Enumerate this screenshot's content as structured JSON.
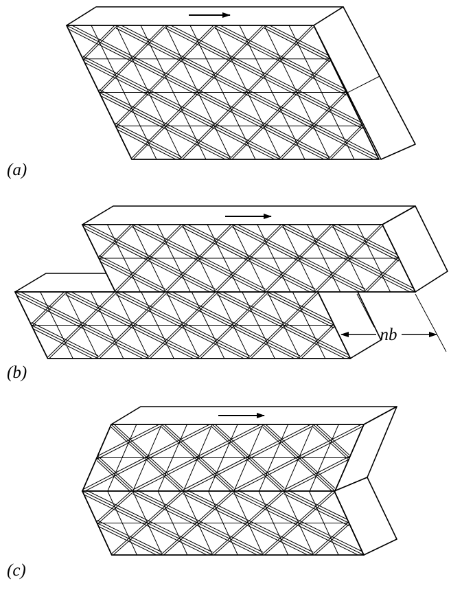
{
  "panels": [
    {
      "label": "(a)"
    },
    {
      "label": "(b)"
    },
    {
      "label": "(c)"
    }
  ],
  "dimension_label": "nb"
}
